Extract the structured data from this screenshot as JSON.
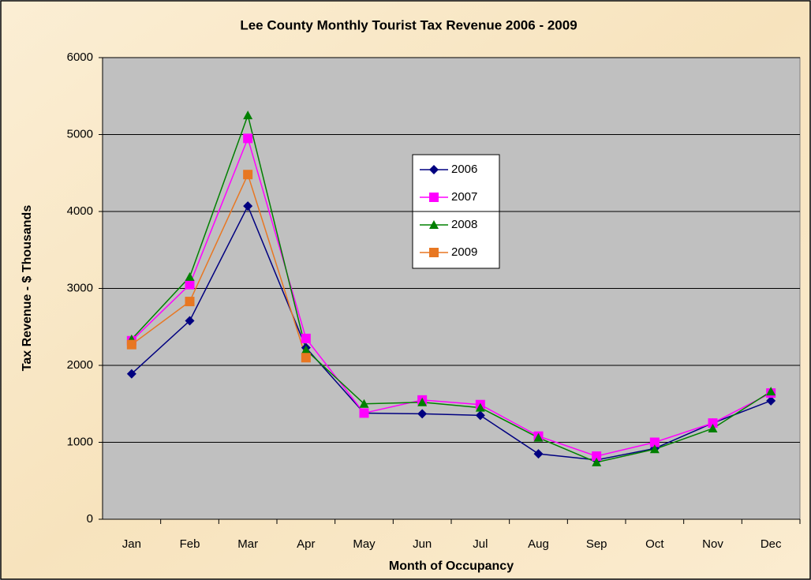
{
  "chart_data": {
    "type": "line",
    "title": "Lee County Monthly Tourist Tax Revenue 2006 - 2009",
    "x_label": "Month of Occupancy",
    "y_label": "Tax Revenue - $ Thousands",
    "categories": [
      "Jan",
      "Feb",
      "Mar",
      "Apr",
      "May",
      "Jun",
      "Jul",
      "Aug",
      "Sep",
      "Oct",
      "Nov",
      "Dec"
    ],
    "series": [
      {
        "name": "2006",
        "color": "#000080",
        "marker": "diamond",
        "values": [
          1890,
          2580,
          4070,
          2230,
          1380,
          1370,
          1350,
          850,
          770,
          920,
          1250,
          1540
        ]
      },
      {
        "name": "2007",
        "color": "#ff00ff",
        "marker": "square",
        "values": [
          2320,
          3050,
          4950,
          2350,
          1380,
          1550,
          1490,
          1080,
          820,
          1000,
          1250,
          1640
        ]
      },
      {
        "name": "2008",
        "color": "#008000",
        "marker": "triangle",
        "values": [
          2340,
          3150,
          5250,
          2200,
          1500,
          1520,
          1450,
          1060,
          740,
          910,
          1180,
          1660
        ]
      },
      {
        "name": "2009",
        "color": "#e87722",
        "marker": "square",
        "values": [
          2270,
          2830,
          4480,
          2100,
          null,
          null,
          null,
          null,
          null,
          null,
          null,
          null
        ]
      }
    ],
    "ylim": [
      0,
      6000
    ],
    "yticks": [
      0,
      1000,
      2000,
      3000,
      4000,
      5000,
      6000
    ],
    "grid": true
  }
}
